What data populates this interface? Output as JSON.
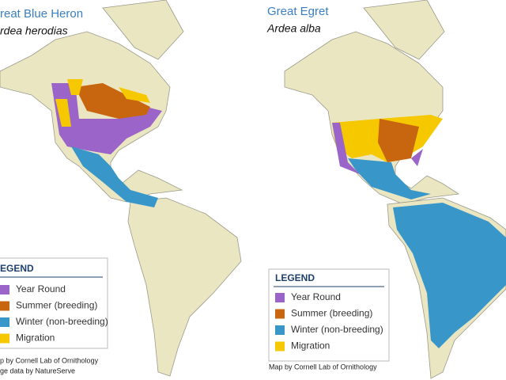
{
  "maps": [
    {
      "title": "reat Blue Heron",
      "subtitle": "rdea herodias",
      "legend": {
        "title": "EGEND",
        "items": [
          {
            "label": "Year Round",
            "color": "#9b64c8"
          },
          {
            "label": "Summer (breeding)",
            "color": "#c8650f"
          },
          {
            "label": "Winter (non-breeding)",
            "color": "#3996c8"
          },
          {
            "label": "Migration",
            "color": "#f6c800"
          }
        ]
      },
      "credits": [
        "p by Cornell Lab of Ornithology",
        "ge data by NatureServe"
      ]
    },
    {
      "title": "Great Egret",
      "subtitle": "Ardea alba",
      "legend": {
        "title": "LEGEND",
        "items": [
          {
            "label": "Year Round",
            "color": "#9b64c8"
          },
          {
            "label": "Summer (breeding)",
            "color": "#c8650f"
          },
          {
            "label": "Winter (non-breeding)",
            "color": "#3996c8"
          },
          {
            "label": "Migration",
            "color": "#f6c800"
          }
        ]
      },
      "credits": [
        "Map by Cornell Lab of Ornithology"
      ]
    }
  ]
}
